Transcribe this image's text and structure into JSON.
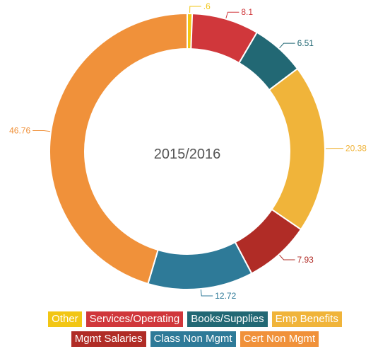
{
  "chart_data": {
    "type": "pie",
    "donut": true,
    "center_label": "2015/2016",
    "slices": [
      {
        "name": "Other",
        "value": 0.6,
        "label": ".6",
        "color": "#f2c614"
      },
      {
        "name": "Services/Operating",
        "value": 8.1,
        "label": "8.1",
        "color": "#d0373b"
      },
      {
        "name": "Books/Supplies",
        "value": 6.51,
        "label": "6.51",
        "color": "#226874"
      },
      {
        "name": "Emp Benefits",
        "value": 20.38,
        "label": "20.38",
        "color": "#f0b43a"
      },
      {
        "name": "Mgmt Salaries",
        "value": 7.93,
        "label": "7.93",
        "color": "#b02c26"
      },
      {
        "name": "Class Non Mgmt",
        "value": 12.72,
        "label": "12.72",
        "color": "#2e7a98"
      },
      {
        "name": "Cert Non Mgmt",
        "value": 46.76,
        "label": "46.76",
        "color": "#f0913a"
      }
    ],
    "legend": {
      "placement": "bottom",
      "rows": [
        [
          "Other",
          "Services/Operating",
          "Books/Supplies",
          "Emp Benefits"
        ],
        [
          "Mgmt Salaries",
          "Class Non Mgmt",
          "Cert Non Mgmt"
        ]
      ]
    }
  }
}
